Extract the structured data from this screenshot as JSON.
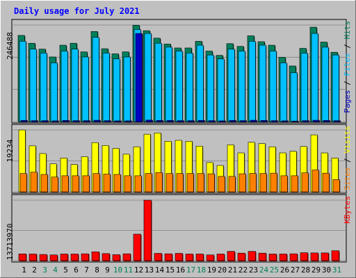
{
  "chart_data": [
    {
      "type": "bar",
      "title": "Daily usage for July 2021",
      "ylabel_parts": [
        "Pages",
        "Files",
        "Hits"
      ],
      "ymax_label": "246488",
      "ylim": [
        0,
        246488
      ],
      "series": [
        {
          "name": "Hits",
          "color": "#00805c",
          "values": [
            220000,
            200000,
            185000,
            165000,
            195000,
            200000,
            178000,
            230000,
            186000,
            173000,
            178000,
            246000,
            232000,
            213000,
            198000,
            188000,
            188000,
            205000,
            180000,
            169000,
            199000,
            192000,
            219000,
            204000,
            195000,
            164000,
            142000,
            187000,
            241000,
            203000,
            177000
          ]
        },
        {
          "name": "Files",
          "color": "#00c0ff",
          "values": [
            205000,
            185000,
            175000,
            150000,
            180000,
            185000,
            165000,
            215000,
            175000,
            160000,
            165000,
            235000,
            225000,
            200000,
            190000,
            180000,
            175000,
            195000,
            170000,
            160000,
            185000,
            180000,
            205000,
            195000,
            180000,
            150000,
            125000,
            175000,
            225000,
            190000,
            170000
          ]
        },
        {
          "name": "Pages",
          "color": "#0000c0",
          "values": [
            3000,
            2500,
            2500,
            2000,
            3000,
            2500,
            2500,
            3500,
            2500,
            2000,
            2000,
            225000,
            4000,
            3000,
            3000,
            2500,
            2500,
            3000,
            2500,
            2000,
            3000,
            2500,
            3500,
            3000,
            2500,
            2000,
            1500,
            2500,
            3500,
            3000,
            2500
          ]
        }
      ]
    },
    {
      "type": "bar",
      "ylabel_parts": [
        "Sites",
        "Visits"
      ],
      "ymax_label": "19234",
      "ylim": [
        0,
        19234
      ],
      "series": [
        {
          "name": "Visits",
          "color": "#ffff00",
          "values": [
            19234,
            14300,
            11900,
            8700,
            10500,
            8500,
            10900,
            15300,
            14400,
            13500,
            11700,
            14000,
            17900,
            18300,
            15700,
            16000,
            15700,
            14200,
            9100,
            8200,
            14600,
            12100,
            15400,
            15000,
            14000,
            12100,
            12600,
            14100,
            17700,
            12100,
            10500
          ]
        },
        {
          "name": "Sites",
          "color": "#ff8000",
          "values": [
            5700,
            6100,
            5400,
            4600,
            5000,
            5000,
            5000,
            5700,
            5500,
            5400,
            5000,
            5000,
            5700,
            6000,
            5700,
            5700,
            5700,
            5700,
            5600,
            4800,
            4800,
            5600,
            5700,
            5700,
            5800,
            5000,
            5000,
            5900,
            6800,
            5800,
            3800
          ]
        }
      ]
    },
    {
      "type": "bar",
      "ylabel_parts": [
        "KBytes"
      ],
      "ymax_label": "13713970",
      "ylim": [
        0,
        13713970
      ],
      "series": [
        {
          "name": "KBytes",
          "color": "#ff0000",
          "values": [
            1530000,
            1500000,
            1400000,
            1300000,
            1500000,
            1500000,
            1550000,
            2000000,
            1600000,
            1350000,
            1550000,
            6000000,
            13713970,
            1650000,
            1550000,
            1650000,
            1500000,
            1500000,
            1300000,
            1500000,
            2100000,
            1700000,
            2100000,
            1700000,
            1500000,
            1500000,
            1550000,
            1800000,
            1750000,
            1750000,
            2250000
          ]
        }
      ]
    }
  ],
  "x_labels": [
    "1",
    "2",
    "3",
    "4",
    "5",
    "6",
    "7",
    "8",
    "9",
    "10",
    "11",
    "12",
    "13",
    "14",
    "15",
    "16",
    "17",
    "18",
    "19",
    "20",
    "21",
    "22",
    "23",
    "24",
    "25",
    "26",
    "27",
    "28",
    "29",
    "30",
    "31"
  ],
  "weekend_days": [
    3,
    4,
    10,
    11,
    17,
    18,
    24,
    25,
    31
  ],
  "colors": {
    "background": "#c0c0c0",
    "title": "#0000ff",
    "weekday_label": "#000000",
    "weekend_label": "#00805c",
    "grid": "#808080"
  }
}
